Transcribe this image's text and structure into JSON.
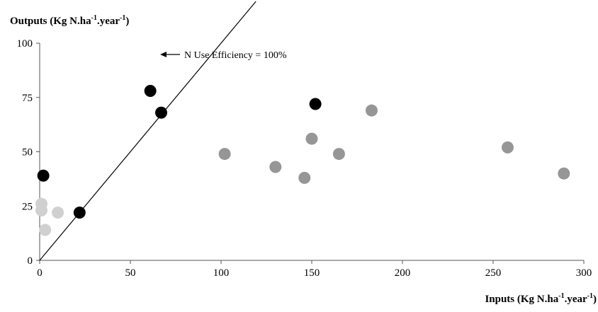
{
  "chart_data": {
    "type": "scatter",
    "title": "",
    "xlabel": {
      "base": "Inputs (Kg N.ha",
      "sup1": "-1",
      "mid": ".year",
      "sup2": "-1",
      "end": ")"
    },
    "ylabel": {
      "base": "Outputs (Kg N.ha",
      "sup1": "-1",
      "mid": ".year",
      "sup2": "-1",
      "end": ")"
    },
    "xlim": [
      0,
      300
    ],
    "ylim": [
      0,
      100
    ],
    "xticks": [
      0,
      50,
      100,
      150,
      200,
      250,
      300
    ],
    "yticks": [
      0,
      25,
      50,
      75,
      100
    ],
    "grid": false,
    "reference_line": {
      "label": "N Use Efficiency = 100%",
      "slope": 1,
      "color": "#000000"
    },
    "series": [
      {
        "color": "#000000",
        "points": [
          {
            "x": 2,
            "y": 39
          },
          {
            "x": 22,
            "y": 22
          },
          {
            "x": 61,
            "y": 78
          },
          {
            "x": 67,
            "y": 68
          },
          {
            "x": 152,
            "y": 72
          }
        ]
      },
      {
        "color": "#969696",
        "points": [
          {
            "x": 102,
            "y": 49
          },
          {
            "x": 130,
            "y": 43
          },
          {
            "x": 146,
            "y": 38
          },
          {
            "x": 150,
            "y": 56
          },
          {
            "x": 165,
            "y": 49
          },
          {
            "x": 183,
            "y": 69
          },
          {
            "x": 258,
            "y": 52
          },
          {
            "x": 289,
            "y": 40
          }
        ]
      },
      {
        "color": "#d0d0d0",
        "points": [
          {
            "x": 1,
            "y": 26
          },
          {
            "x": 1,
            "y": 23
          },
          {
            "x": 10,
            "y": 22
          },
          {
            "x": 3,
            "y": 14
          }
        ]
      }
    ]
  }
}
